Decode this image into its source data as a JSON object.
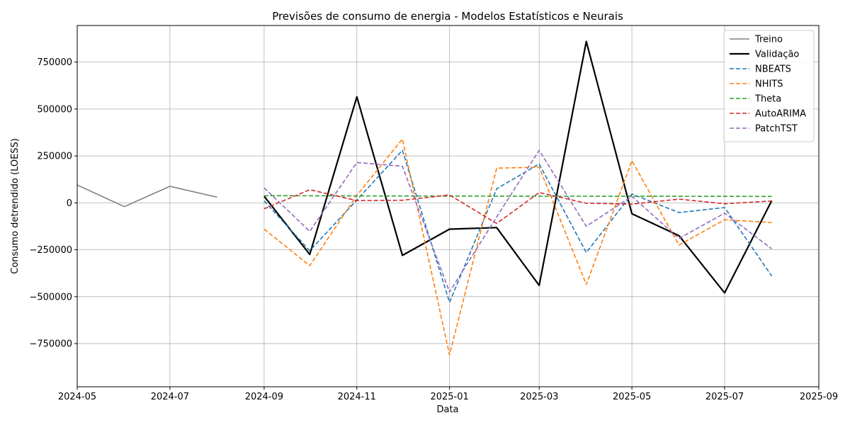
{
  "chart_data": {
    "type": "line",
    "title": "Previsões de consumo de energia - Modelos Estatísticos e Neurais",
    "xlabel": "Data",
    "ylabel": "Consumo detrendido (LOESS)",
    "xlim": [
      "2024-05-01",
      "2025-09-01"
    ],
    "ylim": [
      -980000,
      945000
    ],
    "xticks": [
      "2024-05",
      "2024-07",
      "2024-09",
      "2024-11",
      "2025-01",
      "2025-03",
      "2025-05",
      "2025-07",
      "2025-09"
    ],
    "yticks": [
      -750000,
      -500000,
      -250000,
      0,
      250000,
      500000,
      750000
    ],
    "ytick_labels": [
      "−750000",
      "−500000",
      "−250000",
      "0",
      "250000",
      "500000",
      "750000"
    ],
    "grid": true,
    "legend_position": "top-right",
    "series": [
      {
        "name": "Treino",
        "color": "#808080",
        "style": "solid",
        "x": [
          "2024-05-01",
          "2024-06-01",
          "2024-07-01",
          "2024-08-01"
        ],
        "values": [
          95000,
          -20000,
          88000,
          30000
        ]
      },
      {
        "name": "Validação",
        "color": "#000000",
        "style": "solid",
        "x": [
          "2024-09-01",
          "2024-10-01",
          "2024-11-01",
          "2024-12-01",
          "2025-01-01",
          "2025-02-01",
          "2025-03-01",
          "2025-04-01",
          "2025-05-01",
          "2025-06-01",
          "2025-07-01",
          "2025-08-01"
        ],
        "values": [
          35000,
          -275000,
          565000,
          -280000,
          -140000,
          -132000,
          -440000,
          860000,
          -58000,
          -175000,
          -480000,
          12000
        ]
      },
      {
        "name": "NBEATS",
        "color": "#1f77b4",
        "style": "dashed",
        "x": [
          "2024-09-01",
          "2024-10-01",
          "2024-11-01",
          "2024-12-01",
          "2025-01-01",
          "2025-02-01",
          "2025-03-01",
          "2025-04-01",
          "2025-05-01",
          "2025-06-01",
          "2025-07-01",
          "2025-08-01"
        ],
        "values": [
          10000,
          -255000,
          15000,
          280000,
          -530000,
          75000,
          207000,
          -265000,
          47000,
          -52000,
          -25000,
          -390000
        ]
      },
      {
        "name": "NHITS",
        "color": "#ff7f0e",
        "style": "dashed",
        "x": [
          "2024-09-01",
          "2024-10-01",
          "2024-11-01",
          "2024-12-01",
          "2025-01-01",
          "2025-02-01",
          "2025-03-01",
          "2025-04-01",
          "2025-05-01",
          "2025-06-01",
          "2025-07-01",
          "2025-08-01"
        ],
        "values": [
          -140000,
          -335000,
          40000,
          340000,
          -810000,
          185000,
          190000,
          -435000,
          225000,
          -225000,
          -90000,
          -105000
        ]
      },
      {
        "name": "Theta",
        "color": "#2ca02c",
        "style": "dashed",
        "x": [
          "2024-09-01",
          "2024-10-01",
          "2024-11-01",
          "2024-12-01",
          "2025-01-01",
          "2025-02-01",
          "2025-03-01",
          "2025-04-01",
          "2025-05-01",
          "2025-06-01",
          "2025-07-01",
          "2025-08-01"
        ],
        "values": [
          38000,
          37500,
          37000,
          36500,
          36000,
          35800,
          35500,
          35200,
          35000,
          34800,
          34500,
          34200
        ]
      },
      {
        "name": "AutoARIMA",
        "color": "#d62728",
        "style": "dashed",
        "x": [
          "2024-09-01",
          "2024-10-01",
          "2024-11-01",
          "2024-12-01",
          "2025-01-01",
          "2025-02-01",
          "2025-03-01",
          "2025-04-01",
          "2025-05-01",
          "2025-06-01",
          "2025-07-01",
          "2025-08-01"
        ],
        "values": [
          -32000,
          70000,
          12000,
          14000,
          42000,
          -110000,
          55000,
          -2000,
          -7000,
          20000,
          -5000,
          10000
        ]
      },
      {
        "name": "PatchTST",
        "color": "#9467bd",
        "style": "dashed",
        "x": [
          "2024-09-01",
          "2024-10-01",
          "2024-11-01",
          "2024-12-01",
          "2025-01-01",
          "2025-02-01",
          "2025-03-01",
          "2025-04-01",
          "2025-05-01",
          "2025-06-01",
          "2025-07-01",
          "2025-08-01"
        ],
        "values": [
          80000,
          -152000,
          215000,
          195000,
          -475000,
          -75000,
          280000,
          -125000,
          35000,
          -190000,
          -55000,
          -245000
        ]
      }
    ]
  }
}
